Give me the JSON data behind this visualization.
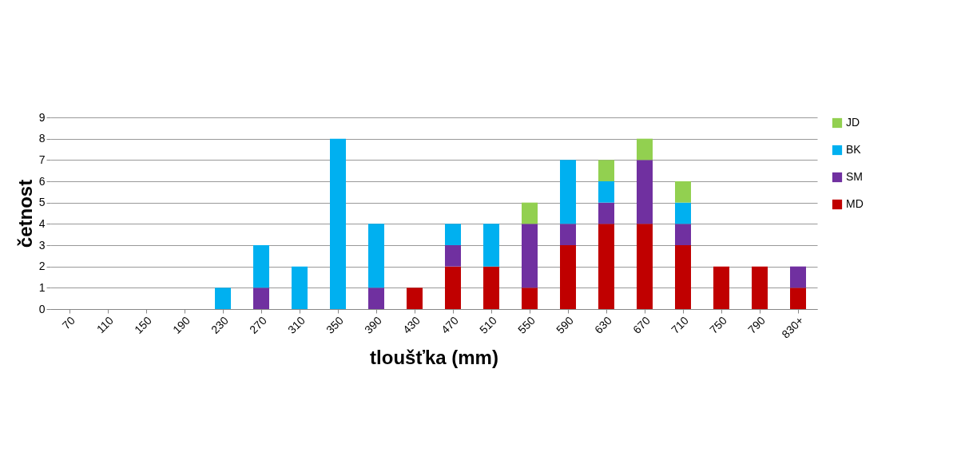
{
  "chart_data": {
    "type": "bar",
    "stacked": true,
    "xlabel": "tloušťka (mm)",
    "ylabel": "četnost",
    "categories": [
      "70",
      "110",
      "150",
      "190",
      "230",
      "270",
      "310",
      "350",
      "390",
      "430",
      "470",
      "510",
      "550",
      "590",
      "630",
      "670",
      "710",
      "750",
      "790",
      "830+"
    ],
    "series": [
      {
        "name": "MD",
        "color": "#c00000",
        "values": [
          0,
          0,
          0,
          0,
          0,
          0,
          0,
          0,
          0,
          1,
          2,
          2,
          1,
          3,
          4,
          4,
          3,
          2,
          2,
          1
        ]
      },
      {
        "name": "SM",
        "color": "#7030a0",
        "values": [
          0,
          0,
          0,
          0,
          0,
          1,
          0,
          0,
          1,
          0,
          1,
          0,
          3,
          1,
          1,
          3,
          1,
          0,
          0,
          1
        ]
      },
      {
        "name": "BK",
        "color": "#00b0f0",
        "values": [
          0,
          0,
          0,
          0,
          1,
          2,
          2,
          8,
          3,
          0,
          1,
          2,
          0,
          3,
          1,
          0,
          1,
          0,
          0,
          0
        ]
      },
      {
        "name": "JD",
        "color": "#92d050",
        "values": [
          0,
          0,
          0,
          0,
          0,
          0,
          0,
          0,
          0,
          0,
          0,
          0,
          1,
          0,
          1,
          1,
          1,
          0,
          0,
          0
        ]
      }
    ],
    "ylim": [
      0,
      9
    ],
    "yticks": [
      0,
      1,
      2,
      3,
      4,
      5,
      6,
      7,
      8,
      9
    ],
    "grid": "y",
    "legend": "right"
  }
}
